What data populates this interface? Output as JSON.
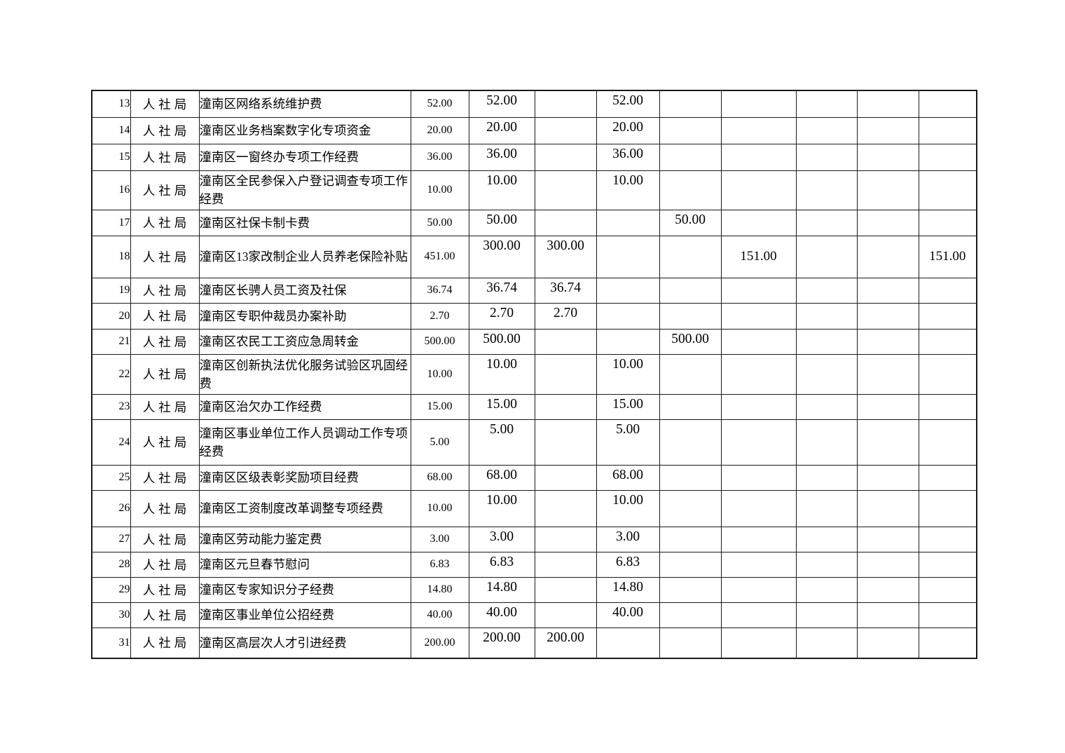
{
  "page": {
    "background_color": "#ffffff",
    "text_color": "#000000",
    "border_color": "#1a1a1a"
  },
  "table": {
    "description_columns": [
      "row-number",
      "department",
      "project-name",
      "amount-col-1",
      "amount-col-2",
      "amount-col-3",
      "amount-col-4",
      "amount-col-5",
      "amount-col-6",
      "amount-col-7",
      "amount-col-8",
      "amount-col-9"
    ],
    "rows": [
      {
        "no": "13",
        "dept": "人社局",
        "project": "潼南区网络系统维护费",
        "values": [
          "52.00",
          "52.00",
          "",
          "52.00",
          "",
          "",
          "",
          "",
          ""
        ]
      },
      {
        "no": "14",
        "dept": "人社局",
        "project": "潼南区业务档案数字化专项资金",
        "values": [
          "20.00",
          "20.00",
          "",
          "20.00",
          "",
          "",
          "",
          "",
          ""
        ]
      },
      {
        "no": "15",
        "dept": "人社局",
        "project": "潼南区一窗终办专项工作经费",
        "values": [
          "36.00",
          "36.00",
          "",
          "36.00",
          "",
          "",
          "",
          "",
          ""
        ]
      },
      {
        "no": "16",
        "dept": "人社局",
        "project": "潼南区全民参保入户登记调查专项工作经费",
        "values": [
          "10.00",
          "10.00",
          "",
          "10.00",
          "",
          "",
          "",
          "",
          ""
        ]
      },
      {
        "no": "17",
        "dept": "人社局",
        "project": "潼南区社保卡制卡费",
        "values": [
          "50.00",
          "50.00",
          "",
          "",
          "50.00",
          "",
          "",
          "",
          ""
        ]
      },
      {
        "no": "18",
        "dept": "人社局",
        "project": "潼南区13家改制企业人员养老保险补贴",
        "values": [
          "451.00",
          "300.00",
          "300.00",
          "",
          "",
          "151.00",
          "",
          "",
          "151.00"
        ]
      },
      {
        "no": "19",
        "dept": "人社局",
        "project": "潼南区长骋人员工资及社保",
        "values": [
          "36.74",
          "36.74",
          "36.74",
          "",
          "",
          "",
          "",
          "",
          ""
        ]
      },
      {
        "no": "20",
        "dept": "人社局",
        "project": "潼南区专职仲裁员办案补助",
        "values": [
          "2.70",
          "2.70",
          "2.70",
          "",
          "",
          "",
          "",
          "",
          ""
        ]
      },
      {
        "no": "21",
        "dept": "人社局",
        "project": "潼南区农民工工资应急周转金",
        "values": [
          "500.00",
          "500.00",
          "",
          "",
          "500.00",
          "",
          "",
          "",
          ""
        ]
      },
      {
        "no": "22",
        "dept": "人社局",
        "project": "潼南区创新执法优化服务试验区巩固经费",
        "values": [
          "10.00",
          "10.00",
          "",
          "10.00",
          "",
          "",
          "",
          "",
          ""
        ]
      },
      {
        "no": "23",
        "dept": "人社局",
        "project": "潼南区治欠办工作经费",
        "values": [
          "15.00",
          "15.00",
          "",
          "15.00",
          "",
          "",
          "",
          "",
          ""
        ]
      },
      {
        "no": "24",
        "dept": "人社局",
        "project": "潼南区事业单位工作人员调动工作专项经费",
        "values": [
          "5.00",
          "5.00",
          "",
          "5.00",
          "",
          "",
          "",
          "",
          ""
        ]
      },
      {
        "no": "25",
        "dept": "人社局",
        "project": "潼南区区级表彰奖励项目经费",
        "values": [
          "68.00",
          "68.00",
          "",
          "68.00",
          "",
          "",
          "",
          "",
          ""
        ]
      },
      {
        "no": "26",
        "dept": "人社局",
        "project": "潼南区工资制度改革调整专项经费",
        "values": [
          "10.00",
          "10.00",
          "",
          "10.00",
          "",
          "",
          "",
          "",
          ""
        ]
      },
      {
        "no": "27",
        "dept": "人社局",
        "project": "潼南区劳动能力鉴定费",
        "values": [
          "3.00",
          "3.00",
          "",
          "3.00",
          "",
          "",
          "",
          "",
          ""
        ]
      },
      {
        "no": "28",
        "dept": "人社局",
        "project": "潼南区元旦春节慰问",
        "values": [
          "6.83",
          "6.83",
          "",
          "6.83",
          "",
          "",
          "",
          "",
          ""
        ]
      },
      {
        "no": "29",
        "dept": "人社局",
        "project": "潼南区专家知识分子经费",
        "values": [
          "14.80",
          "14.80",
          "",
          "14.80",
          "",
          "",
          "",
          "",
          ""
        ]
      },
      {
        "no": "30",
        "dept": "人社局",
        "project": "潼南区事业单位公招经费",
        "values": [
          "40.00",
          "40.00",
          "",
          "40.00",
          "",
          "",
          "",
          "",
          ""
        ]
      },
      {
        "no": "31",
        "dept": "人社局",
        "project": "潼南区高层次人才引进经费",
        "values": [
          "200.00",
          "200.00",
          "200.00",
          "",
          "",
          "",
          "",
          "",
          ""
        ]
      }
    ]
  }
}
